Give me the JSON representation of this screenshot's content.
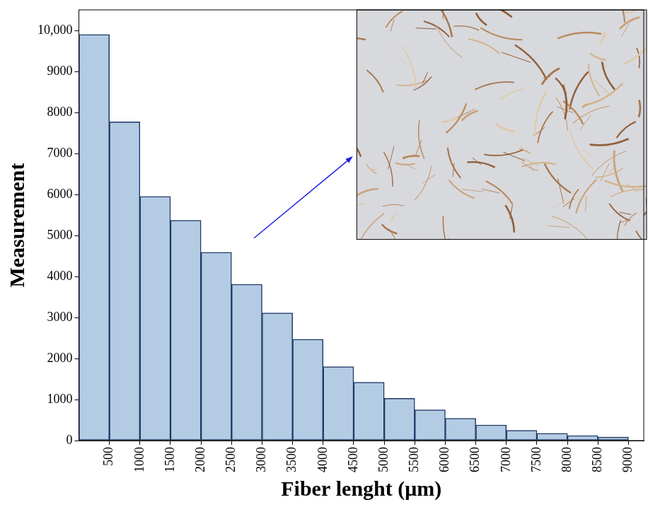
{
  "chart_data": {
    "type": "histogram",
    "x_label": "Fiber lenght (μm)",
    "y_label": "Measurement",
    "bins": [
      0,
      500,
      1000,
      1500,
      2000,
      2500,
      3000,
      3500,
      4000,
      4500,
      5000,
      5500,
      6000,
      6500,
      7000,
      7500,
      8000,
      8500,
      9000
    ],
    "values": [
      9900,
      7770,
      5950,
      5370,
      4590,
      3810,
      3110,
      2470,
      1800,
      1420,
      1030,
      750,
      540,
      380,
      250,
      175,
      120,
      85
    ],
    "color": "#b3cce4",
    "xlim": [
      0,
      9250
    ],
    "xticks": [
      500,
      1000,
      1500,
      2000,
      2500,
      3000,
      3500,
      4000,
      4500,
      5000,
      5500,
      6000,
      6500,
      7000,
      7500,
      8000,
      8500,
      9000
    ],
    "ylim": [
      0,
      10500
    ],
    "yticks": [
      0,
      1000,
      2000,
      3000,
      4000,
      5000,
      6000,
      7000,
      8000,
      9000,
      {
        "value": 10000,
        "label": "10,000"
      }
    ],
    "grid": false
  }
}
